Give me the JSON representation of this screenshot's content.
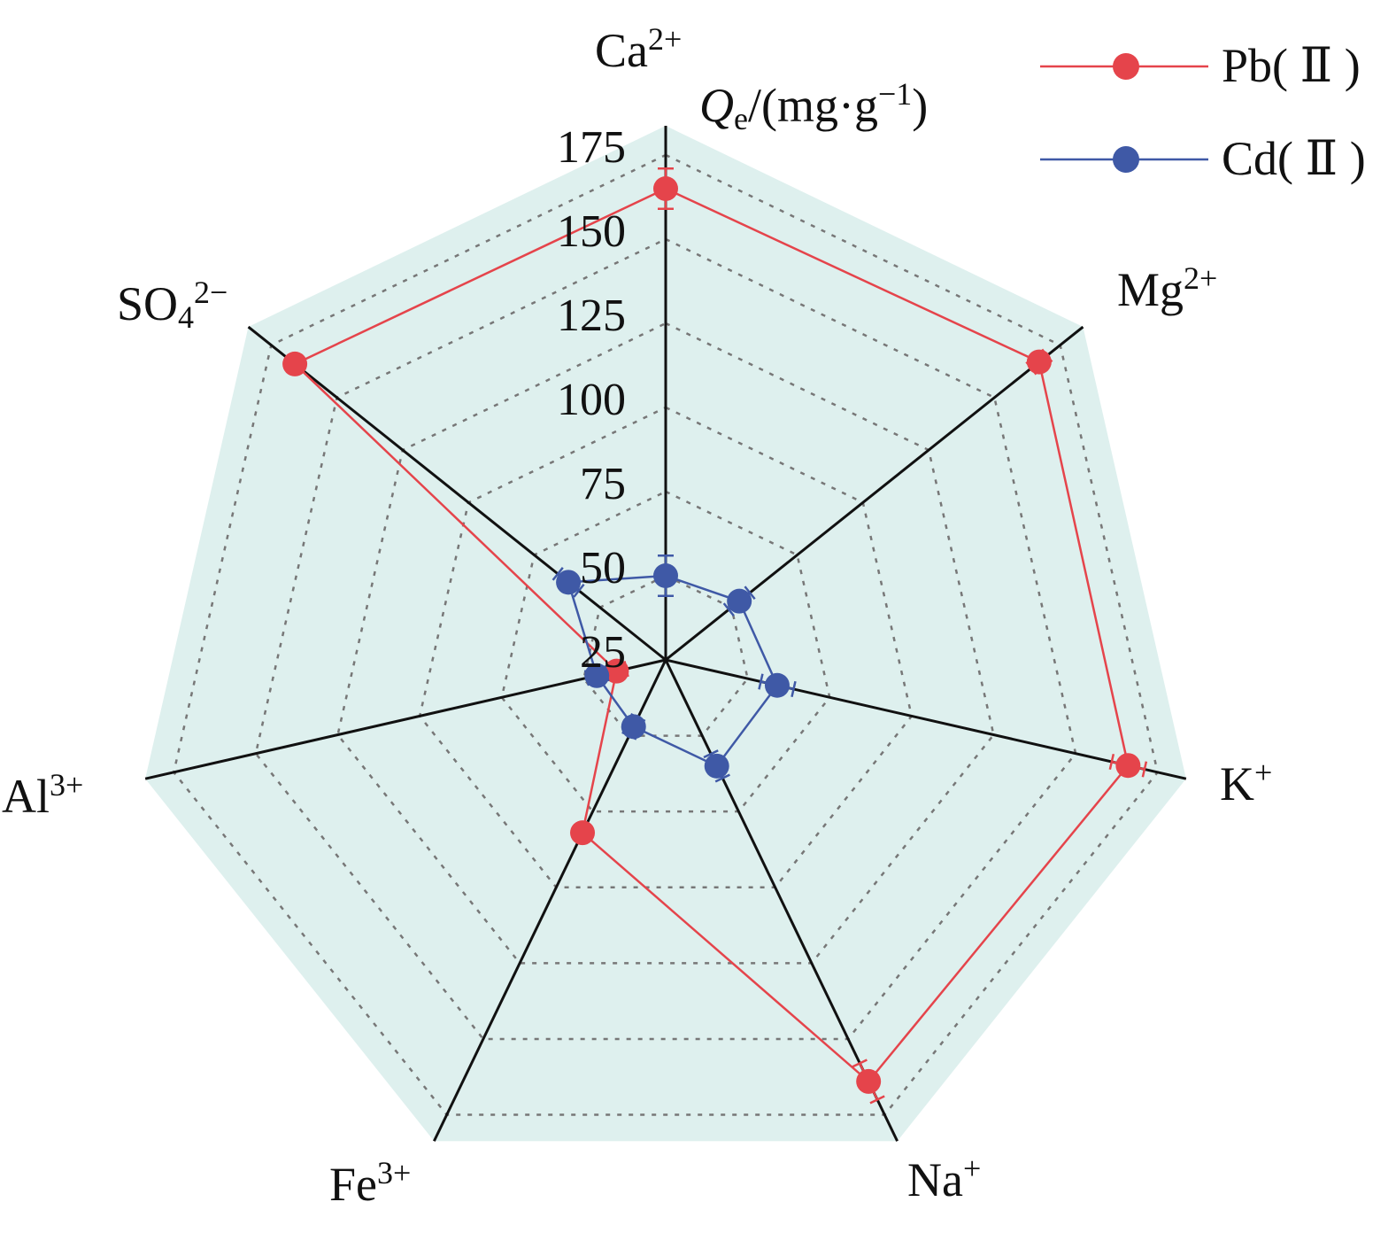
{
  "chart_data": {
    "type": "radar",
    "title": "",
    "radial_label": {
      "italic": "Q",
      "sub": "e",
      "text": "/(mg·g",
      "sup": "−1",
      "close": ")"
    },
    "axes": [
      {
        "base": "Ca",
        "sup": "2+",
        "sub": ""
      },
      {
        "base": "Mg",
        "sup": "2+",
        "sub": ""
      },
      {
        "base": "K",
        "sup": "+",
        "sub": ""
      },
      {
        "base": "Na",
        "sup": "+",
        "sub": ""
      },
      {
        "base": "Fe",
        "sup": "3+",
        "sub": ""
      },
      {
        "base": "Al",
        "sup": "3+",
        "sub": ""
      },
      {
        "base": "SO",
        "sup": "2−",
        "sub": "4"
      }
    ],
    "rlim": [
      25,
      180
    ],
    "ticks": [
      "25",
      "50",
      "75",
      "100",
      "125",
      "150",
      "175"
    ],
    "tick_values": [
      25,
      50,
      75,
      100,
      125,
      150,
      175
    ],
    "grid": true,
    "legend_position": "top-right",
    "series": [
      {
        "name": "Pb( Ⅱ )",
        "color": "#e5444b",
        "values": [
          165,
          167,
          166,
          164,
          82,
          40,
          166
        ],
        "errors": [
          6,
          3,
          5,
          6,
          2,
          3,
          2
        ]
      },
      {
        "name": "Cd( Ⅱ )",
        "color": "#3f59a6",
        "values": [
          50,
          53,
          59,
          60,
          47,
          46,
          62
        ],
        "errors": [
          6,
          4,
          5,
          4,
          3,
          3,
          4
        ]
      }
    ],
    "fill_color": "#def0ee"
  }
}
